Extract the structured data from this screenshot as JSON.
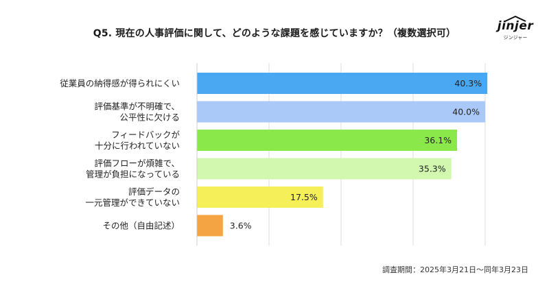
{
  "chart_data": {
    "type": "bar",
    "orientation": "horizontal",
    "title": "Q5. 現在の人事評価に関して、どのような課題を感じていますか？（複数選択可）",
    "categories": [
      [
        "従業員の納得感が得られにくい"
      ],
      [
        "評価基準が不明確で、",
        "公平性に欠ける"
      ],
      [
        "フィードバックが",
        "十分に行われていない"
      ],
      [
        "評価フローが煩雑で、",
        "管理が負担になっている"
      ],
      [
        "評価データの",
        "一元管理ができていない"
      ],
      [
        "その他（自由記述）"
      ]
    ],
    "values": [
      40.3,
      40.0,
      36.1,
      35.3,
      17.5,
      3.6
    ],
    "labels": [
      "40.3%",
      "40.0%",
      "36.1%",
      "35.3%",
      "17.5%",
      "3.6%"
    ],
    "colors": [
      "#4aa8f2",
      "#aac8f8",
      "#8be84a",
      "#d2f8b0",
      "#f5ef5a",
      "#f4a442"
    ],
    "xlim": [
      0,
      50
    ],
    "grid": true,
    "unit": "%"
  },
  "footnote": "調査期間：2025年3月21日〜同年3月23日",
  "brand": {
    "logo_text": "jinjer",
    "logo_sub": "ジンジャー"
  }
}
